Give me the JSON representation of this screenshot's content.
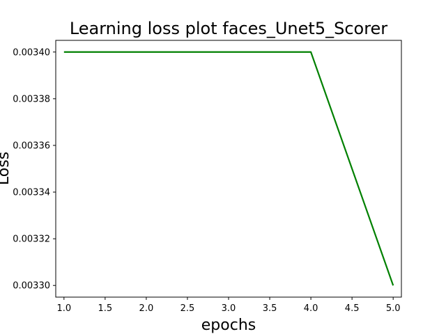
{
  "chart_data": {
    "type": "line",
    "title": "Learning loss plot faces_Unet5_Scorer",
    "xlabel": "epochs",
    "ylabel": "Loss",
    "xlim": [
      0.9,
      5.1
    ],
    "ylim": [
      0.003295,
      0.003405
    ],
    "x_ticks": [
      "1.0",
      "1.5",
      "2.0",
      "2.5",
      "3.0",
      "3.5",
      "4.0",
      "4.5",
      "5.0"
    ],
    "y_ticks": [
      "0.00330",
      "0.00332",
      "0.00334",
      "0.00336",
      "0.00338",
      "0.00340"
    ],
    "grid": false,
    "series": [
      {
        "color": "#008000",
        "x": [
          1,
          2,
          3,
          4,
          5
        ],
        "y": [
          0.0034,
          0.0034,
          0.0034,
          0.0034,
          0.0033
        ]
      }
    ]
  }
}
